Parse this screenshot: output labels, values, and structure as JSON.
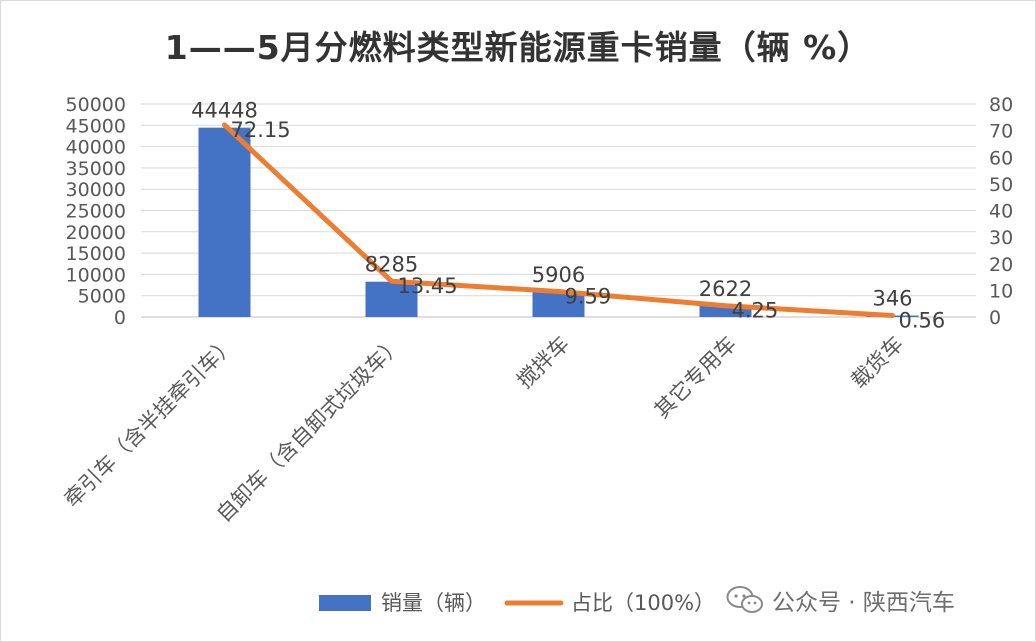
{
  "chart_data": {
    "type": "bar+line",
    "title": "1——5月分燃料类型新能源重卡销量（辆 %）",
    "categories": [
      "牵引车（含半挂牵引车）",
      "自卸车（含自卸式垃圾车）",
      "搅拌车",
      "其它专用车",
      "载货车"
    ],
    "series": [
      {
        "name": "销量（辆）",
        "type": "bar",
        "axis": "left",
        "color": "#4472C4",
        "values": [
          44448,
          8285,
          5906,
          2622,
          346
        ],
        "labels": [
          "44448",
          "8285",
          "5906",
          "2622",
          "346"
        ]
      },
      {
        "name": "占比（100%）",
        "type": "line",
        "axis": "right",
        "color": "#ED7D31",
        "values": [
          72.15,
          13.45,
          9.59,
          4.25,
          0.56
        ],
        "labels": [
          "72.15",
          "13.45",
          "9.59",
          "4.25",
          "0.56"
        ]
      }
    ],
    "y_left": {
      "min": 0,
      "max": 50000,
      "step": 5000,
      "tick_labels": [
        "0",
        "5000",
        "10000",
        "15000",
        "20000",
        "25000",
        "30000",
        "35000",
        "40000",
        "45000",
        "50000"
      ]
    },
    "y_right": {
      "min": 0,
      "max": 80,
      "step": 10,
      "tick_labels": [
        "0",
        "10",
        "20",
        "30",
        "40",
        "50",
        "60",
        "70",
        "80"
      ]
    },
    "grid": true,
    "legend_position": "bottom-right"
  },
  "watermark": {
    "icon": "wechat-icon",
    "text": "公众号 · 陕西汽车"
  }
}
